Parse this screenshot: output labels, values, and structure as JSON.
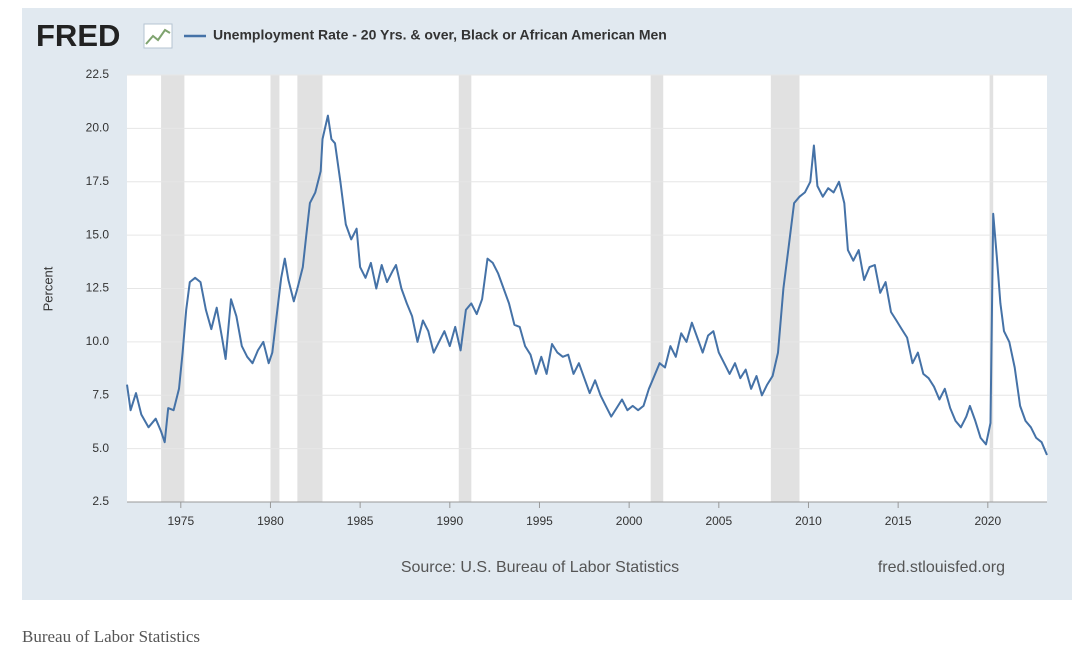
{
  "chart_data": {
    "type": "line",
    "logo": "FRED",
    "y_label": "Percent",
    "source": "Source: U.S. Bureau of Labor Statistics",
    "site": "fred.stlouisfed.org",
    "caption": "Bureau of Labor Statistics",
    "x": [
      1972.0,
      1972.2,
      1972.5,
      1972.8,
      1973.2,
      1973.6,
      1973.9,
      1974.1,
      1974.3,
      1974.6,
      1974.9,
      1975.1,
      1975.3,
      1975.5,
      1975.8,
      1976.1,
      1976.4,
      1976.7,
      1977.0,
      1977.3,
      1977.5,
      1977.8,
      1978.1,
      1978.4,
      1978.7,
      1979.0,
      1979.3,
      1979.6,
      1979.9,
      1980.1,
      1980.3,
      1980.6,
      1980.8,
      1981.0,
      1981.3,
      1981.5,
      1981.8,
      1982.0,
      1982.2,
      1982.5,
      1982.8,
      1982.9,
      1983.2,
      1983.4,
      1983.6,
      1983.9,
      1984.2,
      1984.5,
      1984.8,
      1985.0,
      1985.3,
      1985.6,
      1985.9,
      1986.2,
      1986.5,
      1986.8,
      1987.0,
      1987.3,
      1987.6,
      1987.9,
      1988.2,
      1988.5,
      1988.8,
      1989.1,
      1989.4,
      1989.7,
      1990.0,
      1990.3,
      1990.6,
      1990.9,
      1991.2,
      1991.5,
      1991.8,
      1992.1,
      1992.4,
      1992.7,
      1993.0,
      1993.3,
      1993.6,
      1993.9,
      1994.2,
      1994.5,
      1994.8,
      1995.1,
      1995.4,
      1995.7,
      1996.0,
      1996.3,
      1996.6,
      1996.9,
      1997.2,
      1997.5,
      1997.8,
      1998.1,
      1998.4,
      1998.7,
      1999.0,
      1999.3,
      1999.6,
      1999.9,
      2000.2,
      2000.5,
      2000.8,
      2001.1,
      2001.4,
      2001.7,
      2002.0,
      2002.3,
      2002.6,
      2002.9,
      2003.2,
      2003.5,
      2003.8,
      2004.1,
      2004.4,
      2004.7,
      2005.0,
      2005.3,
      2005.6,
      2005.9,
      2006.2,
      2006.5,
      2006.8,
      2007.1,
      2007.4,
      2007.7,
      2008.0,
      2008.3,
      2008.6,
      2008.9,
      2009.2,
      2009.5,
      2009.8,
      2010.1,
      2010.3,
      2010.5,
      2010.8,
      2011.1,
      2011.4,
      2011.7,
      2012.0,
      2012.2,
      2012.5,
      2012.8,
      2013.1,
      2013.4,
      2013.7,
      2014.0,
      2014.3,
      2014.6,
      2014.9,
      2015.2,
      2015.5,
      2015.8,
      2016.1,
      2016.4,
      2016.7,
      2017.0,
      2017.3,
      2017.6,
      2017.9,
      2018.2,
      2018.5,
      2018.8,
      2019.0,
      2019.3,
      2019.6,
      2019.9,
      2020.15,
      2020.3,
      2020.5,
      2020.7,
      2020.9,
      2021.2,
      2021.5,
      2021.8,
      2022.1,
      2022.4,
      2022.7,
      2023.0,
      2023.3
    ],
    "series": [
      {
        "name": "Unemployment Rate - 20 Yrs. & over, Black or African American Men",
        "color": "#4572a7",
        "values": [
          8.0,
          6.8,
          7.6,
          6.6,
          6.0,
          6.4,
          5.8,
          5.3,
          6.9,
          6.8,
          7.8,
          9.5,
          11.5,
          12.8,
          13.0,
          12.8,
          11.5,
          10.6,
          11.6,
          10.2,
          9.2,
          12.0,
          11.2,
          9.8,
          9.3,
          9.0,
          9.6,
          10.0,
          9.0,
          9.5,
          10.9,
          13.0,
          13.9,
          12.9,
          11.9,
          12.5,
          13.5,
          15.0,
          16.5,
          17.0,
          18.0,
          19.5,
          20.6,
          19.5,
          19.3,
          17.5,
          15.5,
          14.8,
          15.3,
          13.5,
          13.0,
          13.7,
          12.5,
          13.6,
          12.8,
          13.3,
          13.6,
          12.5,
          11.8,
          11.2,
          10.0,
          11.0,
          10.5,
          9.5,
          10.0,
          10.5,
          9.8,
          10.7,
          9.6,
          11.5,
          11.8,
          11.3,
          12.0,
          13.9,
          13.7,
          13.2,
          12.5,
          11.8,
          10.8,
          10.7,
          9.8,
          9.4,
          8.5,
          9.3,
          8.5,
          9.9,
          9.5,
          9.3,
          9.4,
          8.5,
          9.0,
          8.3,
          7.6,
          8.2,
          7.5,
          7.0,
          6.5,
          6.9,
          7.3,
          6.8,
          7.0,
          6.8,
          7.0,
          7.8,
          8.4,
          9.0,
          8.8,
          9.8,
          9.3,
          10.4,
          10.0,
          10.9,
          10.2,
          9.5,
          10.3,
          10.5,
          9.5,
          9.0,
          8.5,
          9.0,
          8.3,
          8.7,
          7.8,
          8.4,
          7.5,
          8.0,
          8.4,
          9.5,
          12.5,
          14.5,
          16.5,
          16.8,
          17.0,
          17.5,
          19.2,
          17.3,
          16.8,
          17.2,
          17.0,
          17.5,
          16.5,
          14.3,
          13.8,
          14.3,
          12.9,
          13.5,
          13.6,
          12.3,
          12.8,
          11.4,
          11.0,
          10.6,
          10.2,
          9.0,
          9.5,
          8.5,
          8.3,
          7.9,
          7.3,
          7.8,
          6.9,
          6.3,
          6.0,
          6.5,
          7.0,
          6.3,
          5.5,
          5.2,
          6.2,
          16.0,
          14.0,
          11.8,
          10.5,
          10.0,
          8.8,
          7.0,
          6.3,
          6.0,
          5.5,
          5.3,
          4.7
        ]
      }
    ],
    "recessions": [
      [
        1973.9,
        1975.2
      ],
      [
        1980.0,
        1980.5
      ],
      [
        1981.5,
        1982.9
      ],
      [
        1990.5,
        1991.2
      ],
      [
        2001.2,
        2001.9
      ],
      [
        2007.9,
        2009.5
      ],
      [
        2020.1,
        2020.3
      ]
    ],
    "recession_color": "#e1e1e1",
    "xlim": [
      1972.0,
      2023.3
    ],
    "ylim": [
      2.5,
      22.5
    ],
    "xticks": [
      1975,
      1980,
      1985,
      1990,
      1995,
      2000,
      2005,
      2010,
      2015,
      2020
    ],
    "yticks": [
      2.5,
      {
        "value": 5,
        "label": "5.0"
      },
      7.5,
      {
        "value": 10,
        "label": "10.0"
      },
      12.5,
      {
        "value": 15,
        "label": "15.0"
      },
      17.5,
      {
        "value": 20,
        "label": "20.0"
      },
      22.5
    ],
    "grid": true
  }
}
